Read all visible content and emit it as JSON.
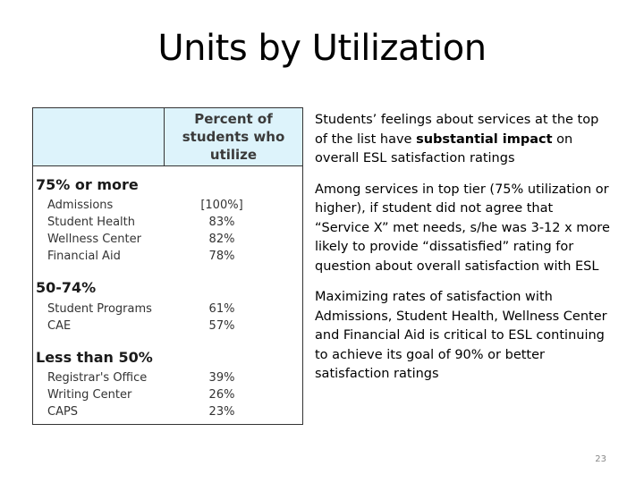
{
  "slide": {
    "title": "Units by Utilization",
    "page_number": "23"
  },
  "table": {
    "header": "Percent of\nstudents who\nutilize",
    "groups": [
      {
        "title": "75% or more",
        "rows": [
          {
            "label": "Admissions",
            "value": "[100%]"
          },
          {
            "label": "Student Health",
            "value": "83%"
          },
          {
            "label": "Wellness Center",
            "value": "82%"
          },
          {
            "label": "Financial Aid",
            "value": "78%"
          }
        ]
      },
      {
        "title": "50-74%",
        "rows": [
          {
            "label": "Student Programs",
            "value": "61%"
          },
          {
            "label": "CAE",
            "value": "57%"
          }
        ]
      },
      {
        "title": "Less than 50%",
        "rows": [
          {
            "label": "Registrar's Office",
            "value": "39%"
          },
          {
            "label": "Writing Center",
            "value": "26%"
          },
          {
            "label": "CAPS",
            "value": "23%"
          }
        ]
      }
    ]
  },
  "bullets": {
    "b1_pre": "Students’ feelings about services at the top of the list have ",
    "b1_bold": "substantial impact",
    "b1_post": " on overall ESL satisfaction ratings",
    "b2": "Among services in top tier (75% utilization or higher), if student did not agree that “Service X” met needs, s/he was 3-12 x more likely to provide “dissatisfied” rating for question about overall satisfaction with ESL",
    "b3": "Maximizing rates of satisfaction with Admissions, Student Health, Wellness Center and Financial Aid is critical to ESL continuing to achieve its goal of 90% or better satisfaction ratings"
  }
}
